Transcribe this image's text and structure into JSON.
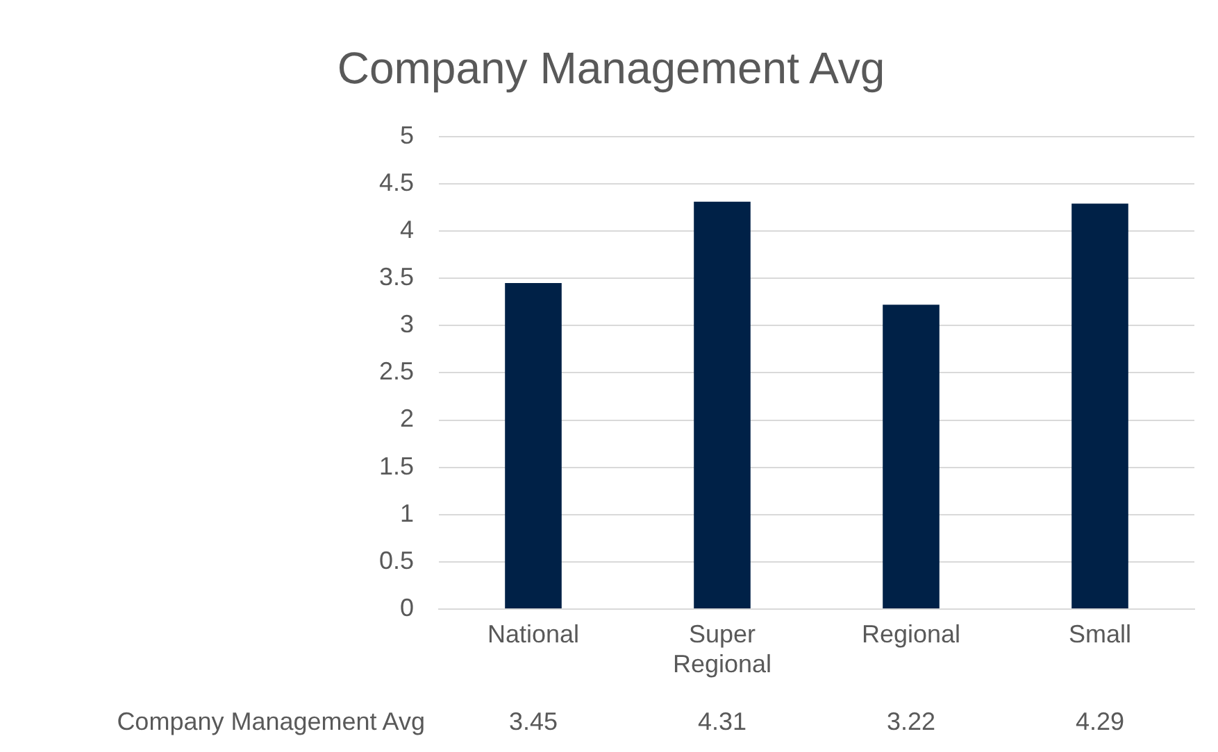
{
  "chart_data": {
    "type": "bar",
    "title": "Company Management Avg",
    "categories": [
      "National",
      "Super Regional",
      "Regional",
      "Small"
    ],
    "series": [
      {
        "name": "Company Management Avg",
        "color": "#002147",
        "values": [
          3.45,
          4.31,
          3.22,
          4.29
        ]
      }
    ],
    "ylim": [
      0,
      5
    ],
    "yticks": [
      0,
      0.5,
      1,
      1.5,
      2,
      2.5,
      3,
      3.5,
      4,
      4.5,
      5
    ],
    "grid": "y",
    "legend": false,
    "data_labels": true
  }
}
